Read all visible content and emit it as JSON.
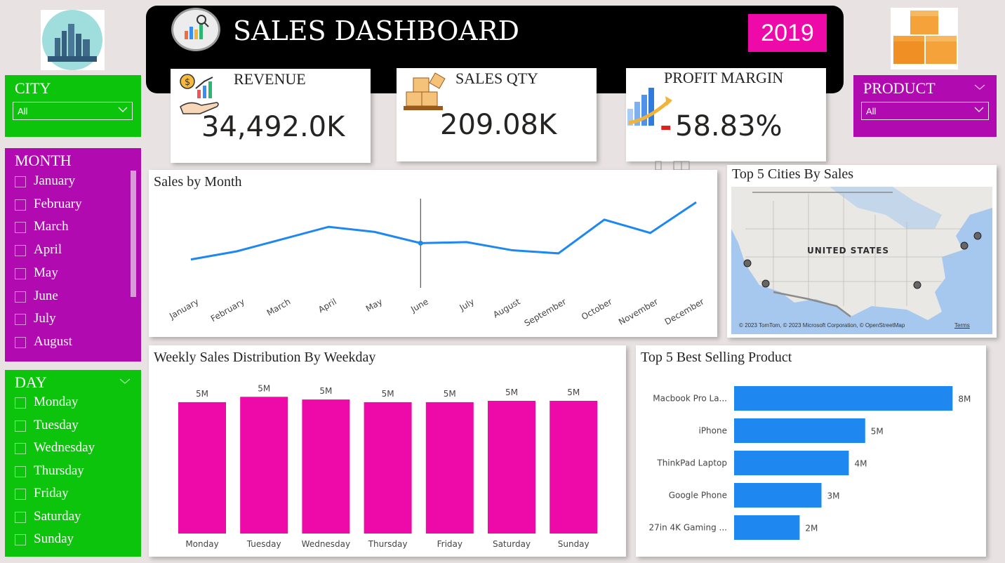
{
  "header": {
    "title": "SALES DASHBOARD",
    "year": "2019"
  },
  "colors": {
    "green": "#0dc40d",
    "purple": "#b10ab1",
    "pink": "#ee0aa8",
    "blue": "#1e88f0",
    "header_bg": "#000000"
  },
  "icons": {
    "logo": "analytics-icon",
    "city": "city-skyline-icon",
    "product": "boxes-icon",
    "revenue": "revenue-hand-icon",
    "qty": "stacked-boxes-icon",
    "margin": "growth-chart-icon"
  },
  "kpis": {
    "revenue_label": "REVENUE",
    "revenue_value": "34,492.0K",
    "qty_label": "SALES QTY",
    "qty_value": "209.08K",
    "margin_label": "PROFIT MARGIN",
    "margin_value": "58.83%",
    "margin_sign": "-"
  },
  "city_slicer": {
    "title": "CITY",
    "value": "All"
  },
  "product_slicer": {
    "title": "PRODUCT",
    "value": "All"
  },
  "month_slicer": {
    "title": "MONTH",
    "items": [
      "January",
      "February",
      "March",
      "April",
      "May",
      "June",
      "July",
      "August"
    ]
  },
  "day_slicer": {
    "title": "DAY",
    "items": [
      "Monday",
      "Tuesday",
      "Wednesday",
      "Thursday",
      "Friday",
      "Saturday",
      "Sunday"
    ]
  },
  "map": {
    "title": "Top 5 Cities By Sales",
    "country_label": "UNITED STATES",
    "attribution": "© 2023 TomTom, © 2023 Microsoft Corporation, © OpenStreetMap",
    "terms": "Terms"
  },
  "chart_data": [
    {
      "type": "line",
      "title": "Sales by Month",
      "categories": [
        "January",
        "February",
        "March",
        "April",
        "May",
        "June",
        "July",
        "August",
        "September",
        "October",
        "November",
        "December"
      ],
      "values": [
        1.8,
        2.2,
        2.8,
        3.4,
        3.15,
        2.6,
        2.65,
        2.25,
        2.1,
        3.75,
        3.1,
        4.6
      ],
      "ylim": [
        0,
        5.5
      ],
      "grid": false,
      "cursor_index": 5
    },
    {
      "type": "bar",
      "title": "Weekly Sales Distribution By Weekday",
      "categories": [
        "Monday",
        "Tuesday",
        "Wednesday",
        "Thursday",
        "Friday",
        "Saturday",
        "Sunday"
      ],
      "values": [
        4.9,
        5.1,
        5.0,
        4.9,
        4.9,
        4.95,
        4.95
      ],
      "data_labels": [
        "5M",
        "5M",
        "5M",
        "5M",
        "5M",
        "5M",
        "5M"
      ],
      "ylim": [
        0,
        5.5
      ]
    },
    {
      "type": "bar",
      "orientation": "horizontal",
      "title": "Top 5 Best Selling Product",
      "categories": [
        "Macbook Pro La...",
        "iPhone",
        "ThinkPad Laptop",
        "Google Phone",
        "27in 4K Gaming ..."
      ],
      "values": [
        8.0,
        4.8,
        4.2,
        3.2,
        2.4
      ],
      "data_labels": [
        "8M",
        "5M",
        "4M",
        "3M",
        "2M"
      ],
      "xlim": [
        0,
        8.3
      ]
    }
  ]
}
